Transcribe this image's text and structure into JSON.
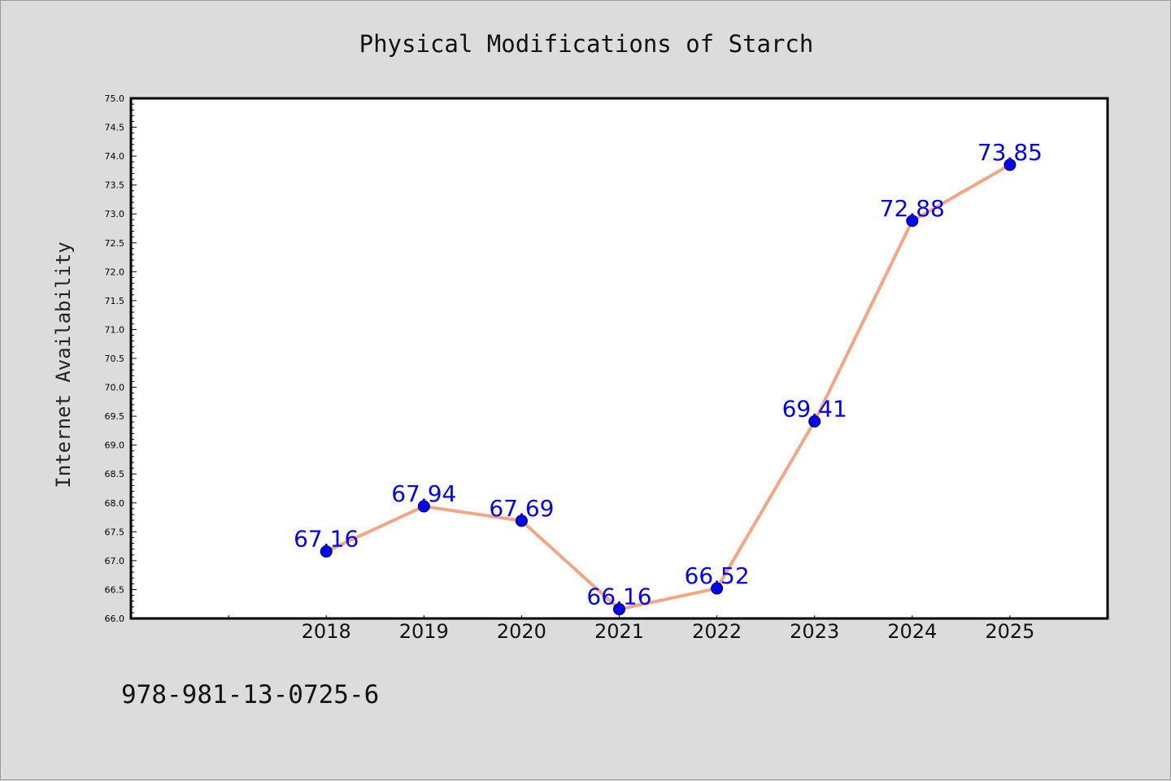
{
  "chart_data": {
    "type": "line",
    "title": "Physical Modifications of Starch",
    "xlabel": "",
    "ylabel": "Internet Availability",
    "x": [
      2018,
      2019,
      2020,
      2021,
      2022,
      2023,
      2024,
      2025
    ],
    "categories": [
      "2018",
      "2019",
      "2020",
      "2021",
      "2022",
      "2023",
      "2024",
      "2025"
    ],
    "series": [
      {
        "values": [
          67.16,
          67.94,
          67.69,
          66.16,
          66.52,
          69.41,
          72.88,
          73.85
        ]
      }
    ],
    "data_labels": [
      "67.16",
      "67.94",
      "67.69",
      "66.16",
      "66.52",
      "69.41",
      "72.88",
      "73.85"
    ],
    "xlim": [
      2016,
      2026
    ],
    "ylim": [
      66.0,
      75.0
    ],
    "yticks": [
      "66.0",
      "66.5",
      "67.0",
      "67.5",
      "68.0",
      "68.5",
      "69.0",
      "69.5",
      "70.0",
      "70.5",
      "71.0",
      "71.5",
      "72.0",
      "72.5",
      "73.0",
      "73.5",
      "74.0",
      "74.5",
      "75.0"
    ],
    "grid": false,
    "legend": false,
    "colors": {
      "line": "#f4a582",
      "marker": "#0000ff",
      "label": "#0000ff",
      "background": "#dcdcdc",
      "plot_area": "#ffffff"
    }
  },
  "footer": {
    "isbn": "978-981-13-0725-6"
  }
}
